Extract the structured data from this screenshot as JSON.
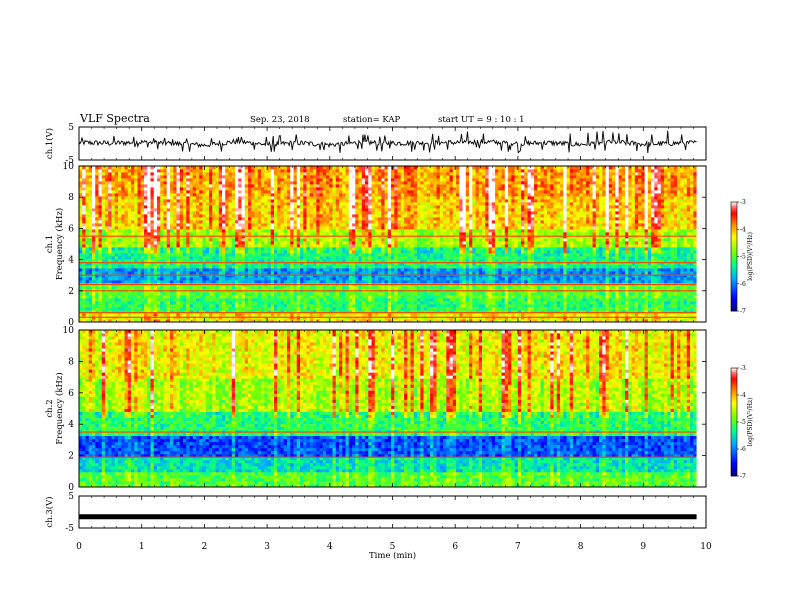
{
  "header": {
    "title": "VLF Spectra",
    "date": "Sep. 23, 2018",
    "station": "station= KAP",
    "start": "start UT =  9 : 10 : 1"
  },
  "chart_data": [
    {
      "type": "line",
      "title": "",
      "ylabel": "ch.1(V)",
      "ylim": [
        -5,
        5
      ],
      "yticks": [
        5,
        -5
      ],
      "x_range_min": [
        0,
        9.85
      ],
      "waveform": {
        "description_values": "approximate envelope of signal",
        "x_min": [
          0,
          0.5,
          1,
          1.5,
          2,
          2.5,
          3,
          3.5,
          4,
          4.5,
          5,
          5.5,
          6,
          6.5,
          7,
          7.5,
          8,
          8.5,
          9,
          9.5,
          9.85
        ],
        "y_mean_V": [
          0.3,
          0.1,
          0.4,
          0,
          -0.5,
          0.6,
          -0.3,
          0.2,
          -0.4,
          0.3,
          0.1,
          0.2,
          0.3,
          0.5,
          0,
          0.2,
          -0.3,
          0.5,
          -0.2,
          0.1,
          0.2
        ],
        "y_min_V": [
          -2.5,
          -3,
          -1,
          -3,
          -4,
          -2,
          -3.5,
          -2,
          -3,
          -2.5,
          -2.5,
          -3,
          -2,
          -1.5,
          -3,
          -2.5,
          -3,
          -2,
          -3.5,
          -2,
          -2
        ],
        "y_max_V": [
          2,
          3,
          2.5,
          2,
          1.5,
          3,
          2,
          3.5,
          2.5,
          3,
          2.5,
          3,
          3.5,
          4,
          2.5,
          3,
          3.5,
          4,
          2.5,
          4.5,
          3
        ]
      }
    },
    {
      "type": "heatmap",
      "title": "",
      "channel_label": "ch.1",
      "ylabel": "Frequency (kHz)",
      "ylim": [
        0,
        10
      ],
      "yticks": [
        0,
        2,
        4,
        6,
        8,
        10
      ],
      "colorbar": {
        "range": [
          -7,
          -3
        ],
        "ticks": [
          -3,
          -4,
          -5,
          -6,
          -7
        ],
        "label": "log(PSD)(V²/Hz)"
      },
      "spectrum_bands_kHz": [
        {
          "from": 0,
          "to": 0.5,
          "log_psd": -4.3
        },
        {
          "from": 0.5,
          "to": 1.5,
          "log_psd": -5.2
        },
        {
          "from": 1.5,
          "to": 2.5,
          "log_psd": -5.0
        },
        {
          "from": 2.5,
          "to": 3.5,
          "log_psd": -5.9
        },
        {
          "from": 3.5,
          "to": 4.8,
          "log_psd": -5.3
        },
        {
          "from": 4.8,
          "to": 6.0,
          "log_psd": -4.6
        },
        {
          "from": 6.0,
          "to": 8.0,
          "log_psd": -4.1
        },
        {
          "from": 8.0,
          "to": 10.0,
          "log_psd": -3.9
        }
      ],
      "line_frequencies_kHz": [
        0.3,
        0.6,
        2.0,
        2.4,
        3.0,
        3.8,
        5.5
      ]
    },
    {
      "type": "heatmap",
      "title": "",
      "channel_label": "ch.2",
      "ylabel": "Frequency (kHz)",
      "ylim": [
        0,
        10
      ],
      "yticks": [
        0,
        2,
        4,
        6,
        8,
        10
      ],
      "colorbar": {
        "range": [
          -7,
          -3
        ],
        "ticks": [
          -3,
          -4,
          -5,
          -6,
          -7
        ],
        "label": "log(PSD)(V²/Hz)"
      },
      "spectrum_bands_kHz": [
        {
          "from": 0,
          "to": 1.0,
          "log_psd": -5.0
        },
        {
          "from": 1.0,
          "to": 2.0,
          "log_psd": -5.5
        },
        {
          "from": 2.0,
          "to": 3.3,
          "log_psd": -6.2
        },
        {
          "from": 3.3,
          "to": 4.8,
          "log_psd": -5.2
        },
        {
          "from": 4.8,
          "to": 7.0,
          "log_psd": -4.6
        },
        {
          "from": 7.0,
          "to": 10.0,
          "log_psd": -4.3
        }
      ],
      "line_frequencies_kHz": [
        1.9,
        3.5
      ]
    },
    {
      "type": "line",
      "title": "",
      "ylabel": "ch.3(V)",
      "ylim": [
        -5,
        5
      ],
      "yticks": [
        5,
        -5
      ],
      "x": [
        0,
        9.85
      ],
      "y": [
        -1.5,
        -1.5
      ]
    }
  ],
  "xaxis": {
    "label": "Time (min)",
    "range": [
      0,
      10
    ],
    "ticks": [
      "0",
      "1",
      "2",
      "3",
      "4",
      "5",
      "6",
      "7",
      "8",
      "9",
      "10"
    ]
  },
  "colors": {
    "trace": "#000000",
    "colormap": [
      "#000080",
      "#0000ff",
      "#00b0ff",
      "#00ff80",
      "#80ff00",
      "#ffff00",
      "#ff8000",
      "#ff0000",
      "#ff8080",
      "#ffffff"
    ]
  }
}
